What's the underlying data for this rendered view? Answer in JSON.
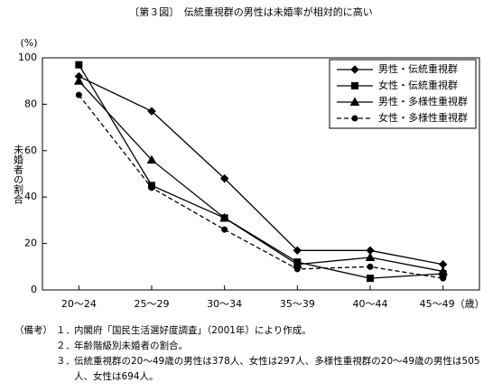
{
  "chart_data": {
    "type": "line",
    "title": "〔第３図〕　伝統重視群の男性は未婚率が相対的に高い",
    "y_unit": "(%)",
    "y_label": "未婚者の割合",
    "categories": [
      "20〜24",
      "25〜29",
      "30〜34",
      "35〜39",
      "40〜44",
      "45〜49（歳）"
    ],
    "series": [
      {
        "name": "男性・伝統重視群",
        "color": "#000000",
        "marker": "diamond",
        "dashed": false,
        "values": [
          92,
          77,
          48,
          17,
          17,
          11
        ]
      },
      {
        "name": "女性・伝統重視群",
        "color": "#000000",
        "marker": "square",
        "dashed": false,
        "values": [
          97,
          45,
          31,
          12,
          5,
          7
        ]
      },
      {
        "name": "男性・多様性重視群",
        "color": "#000000",
        "marker": "triangle",
        "dashed": false,
        "values": [
          90,
          56,
          31,
          11,
          14,
          8
        ]
      },
      {
        "name": "女性・多様性重視群",
        "color": "#000000",
        "marker": "circle",
        "dashed": true,
        "values": [
          84,
          44,
          26,
          9,
          10,
          5
        ]
      }
    ],
    "ylim": [
      0,
      100
    ],
    "yticks": [
      0,
      20,
      40,
      60,
      80,
      100
    ],
    "grid": false,
    "legend": "upper right"
  },
  "notes": {
    "heading": "（備考）",
    "items": [
      {
        "number": "１．",
        "text": "内閣府「国民生活選好度調査」（2001年）により作成。"
      },
      {
        "number": "２．",
        "text": "年齢階級別未婚者の割合。"
      },
      {
        "number": "３．",
        "text": "伝統重視群の20〜49歳の男性は378人、女性は297人、多様性重視群の20〜49歳の男性は505人、女性は694人。"
      }
    ]
  }
}
